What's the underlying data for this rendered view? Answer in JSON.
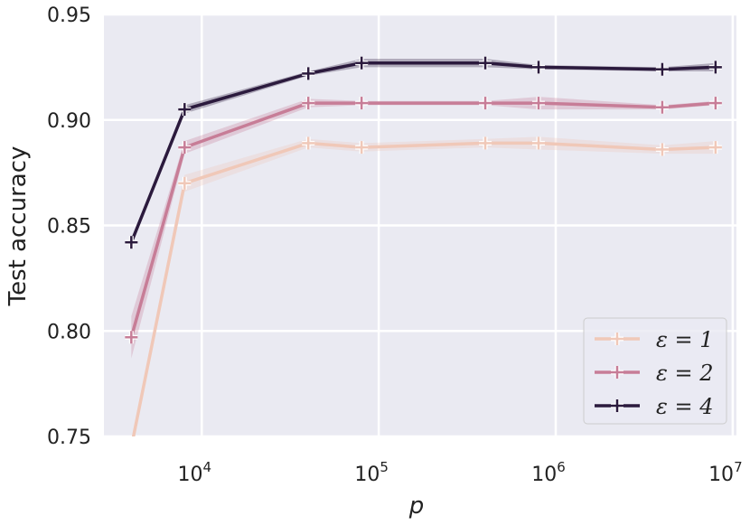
{
  "chart_data": {
    "type": "line",
    "xlabel": "p",
    "ylabel": "Test accuracy",
    "xscale": "log",
    "xlim": [
      2800,
      10500000
    ],
    "ylim": [
      0.75,
      0.95
    ],
    "grid": true,
    "legend_position": "bottom-right",
    "y_ticks": [
      {
        "value": 0.75,
        "label": "0.75"
      },
      {
        "value": 0.8,
        "label": "0.80"
      },
      {
        "value": 0.85,
        "label": "0.85"
      },
      {
        "value": 0.9,
        "label": "0.90"
      },
      {
        "value": 0.95,
        "label": "0.95"
      }
    ],
    "x_ticks": [
      {
        "value": 10000,
        "base": "10",
        "exp": "4"
      },
      {
        "value": 100000,
        "base": "10",
        "exp": "5"
      },
      {
        "value": 1000000,
        "base": "10",
        "exp": "6"
      },
      {
        "value": 10000000,
        "base": "10",
        "exp": "7"
      }
    ],
    "x": [
      4000,
      8000,
      40000,
      80000,
      400000,
      800000,
      4000000,
      8000000
    ],
    "series": [
      {
        "name": "ε = 1",
        "color": "#f0c8b8",
        "values": [
          0.745,
          0.87,
          0.889,
          0.887,
          0.889,
          0.889,
          0.886,
          0.887
        ],
        "band": [
          0.003,
          0.004,
          0.002,
          0.002,
          0.002,
          0.003,
          0.002,
          0.003
        ]
      },
      {
        "name": "ε = 2",
        "color": "#c77d97",
        "values": [
          0.797,
          0.887,
          0.908,
          0.908,
          0.908,
          0.908,
          0.906,
          0.908
        ],
        "band": [
          0.01,
          0.003,
          0.002,
          0.001,
          0.001,
          0.003,
          0.001,
          0.001
        ]
      },
      {
        "name": "ε = 4",
        "color": "#2b1a3d",
        "values": [
          0.842,
          0.905,
          0.922,
          0.927,
          0.927,
          0.925,
          0.924,
          0.925
        ],
        "band": [
          0.001,
          0.002,
          0.001,
          0.002,
          0.002,
          0.001,
          0.001,
          0.002
        ]
      }
    ]
  }
}
